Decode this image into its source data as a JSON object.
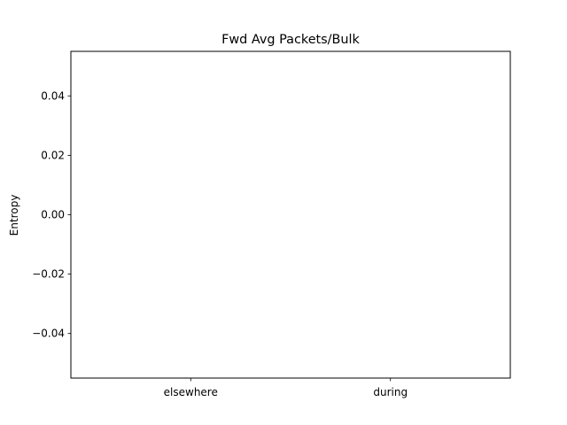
{
  "chart_data": {
    "type": "bar",
    "title": "Fwd Avg Packets/Bulk",
    "xlabel": "",
    "ylabel": "Entropy",
    "categories": [
      "elsewhere",
      "during"
    ],
    "values": [
      0,
      0
    ],
    "ylim": [
      -0.055,
      0.055
    ],
    "yticks": [
      0.04,
      0.02,
      0.0,
      -0.02,
      -0.04
    ],
    "ytick_labels": [
      "0.04",
      "0.02",
      "0.00",
      "−0.02",
      "−0.04"
    ],
    "grid": false,
    "legend": "none"
  }
}
